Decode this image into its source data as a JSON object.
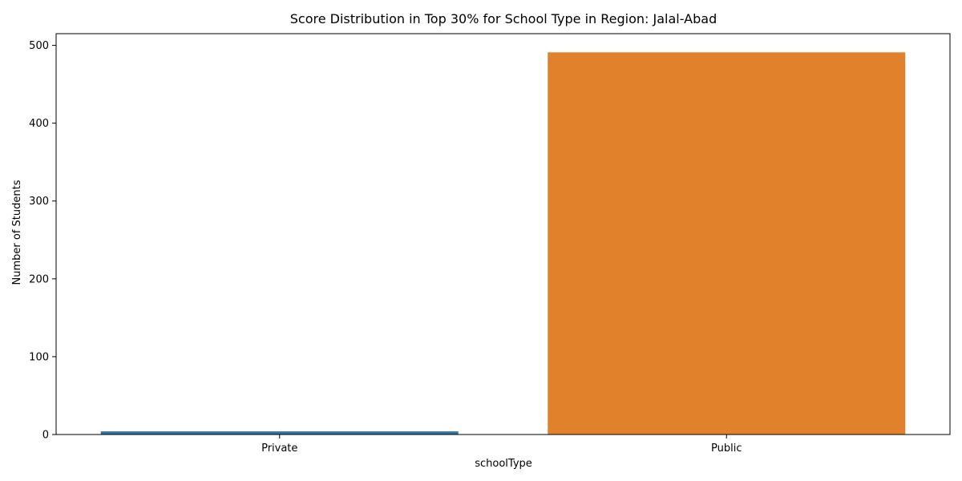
{
  "chart_data": {
    "type": "bar",
    "title": "Score Distribution in Top 30% for School Type in Region: Jalal-Abad",
    "xlabel": "schoolType",
    "ylabel": "Number of Students",
    "categories": [
      "Private",
      "Public"
    ],
    "values": [
      4,
      491
    ],
    "colors": [
      "#3274a1",
      "#e1812c"
    ],
    "ylim": [
      0,
      515
    ],
    "yticks": [
      0,
      100,
      200,
      300,
      400,
      500
    ],
    "grid": false,
    "legend": "none"
  }
}
